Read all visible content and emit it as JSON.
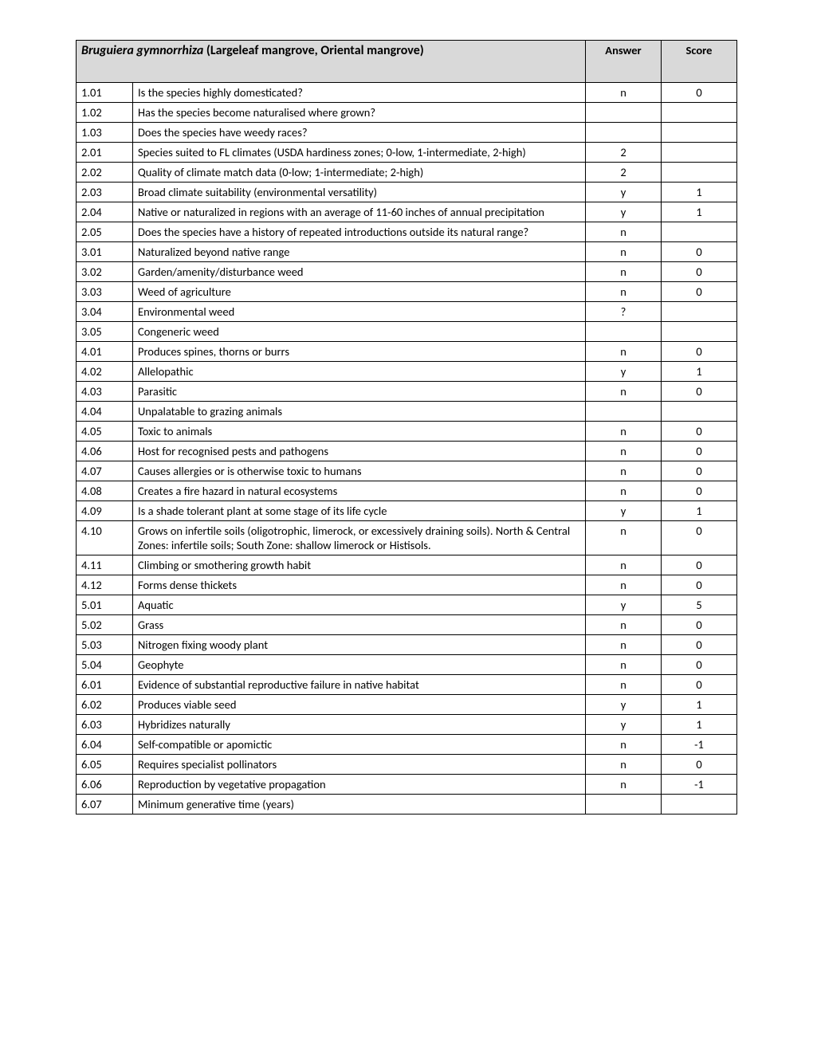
{
  "header": {
    "speciesScientific": "Bruguiera gymnorrhiza",
    "speciesCommon": "  (Largeleaf mangrove, Oriental mangrove)",
    "answerLabel": "Answer",
    "scoreLabel": "Score"
  },
  "rows": [
    {
      "num": "1.01",
      "q": "Is the species highly domesticated?",
      "ans": "n",
      "score": "0"
    },
    {
      "num": "1.02",
      "q": "Has the species become naturalised where grown?",
      "ans": "",
      "score": ""
    },
    {
      "num": "1.03",
      "q": "Does the species have weedy races?",
      "ans": "",
      "score": ""
    },
    {
      "num": "2.01",
      "q": "Species suited to FL climates (USDA hardiness zones; 0-low, 1-intermediate, 2-high)",
      "ans": "2",
      "score": ""
    },
    {
      "num": "2.02",
      "q": "Quality of climate match data (0-low; 1-intermediate; 2-high)",
      "ans": "2",
      "score": ""
    },
    {
      "num": "2.03",
      "q": "Broad climate suitability (environmental versatility)",
      "ans": "y",
      "score": "1"
    },
    {
      "num": "2.04",
      "q": "Native or naturalized in regions with an average of 11-60 inches of annual precipitation",
      "ans": "y",
      "score": "1"
    },
    {
      "num": "2.05",
      "q": "Does the species have a history of repeated introductions outside its natural range?",
      "ans": "n",
      "score": ""
    },
    {
      "num": "3.01",
      "q": "Naturalized beyond native range",
      "ans": "n",
      "score": "0"
    },
    {
      "num": "3.02",
      "q": "Garden/amenity/disturbance weed",
      "ans": "n",
      "score": "0"
    },
    {
      "num": "3.03",
      "q": "Weed of agriculture",
      "ans": "n",
      "score": "0"
    },
    {
      "num": "3.04",
      "q": "Environmental weed",
      "ans": "?",
      "score": ""
    },
    {
      "num": "3.05",
      "q": "Congeneric weed",
      "ans": "",
      "score": ""
    },
    {
      "num": "4.01",
      "q": "Produces spines, thorns or burrs",
      "ans": "n",
      "score": "0"
    },
    {
      "num": "4.02",
      "q": "Allelopathic",
      "ans": "y",
      "score": "1"
    },
    {
      "num": "4.03",
      "q": "Parasitic",
      "ans": "n",
      "score": "0"
    },
    {
      "num": "4.04",
      "q": "Unpalatable to grazing animals",
      "ans": "",
      "score": ""
    },
    {
      "num": "4.05",
      "q": "Toxic to animals",
      "ans": "n",
      "score": "0"
    },
    {
      "num": "4.06",
      "q": "Host for recognised pests and pathogens",
      "ans": "n",
      "score": "0"
    },
    {
      "num": "4.07",
      "q": "Causes allergies or is otherwise toxic to humans",
      "ans": "n",
      "score": "0"
    },
    {
      "num": "4.08",
      "q": "Creates a fire hazard in natural ecosystems",
      "ans": "n",
      "score": "0"
    },
    {
      "num": "4.09",
      "q": "Is a shade tolerant plant at some stage of its life cycle",
      "ans": "y",
      "score": "1"
    },
    {
      "num": "4.10",
      "q": "Grows on infertile soils (oligotrophic, limerock, or excessively draining soils). North & Central Zones: infertile soils; South Zone: shallow limerock or Histisols.",
      "ans": "n",
      "score": "0"
    },
    {
      "num": "4.11",
      "q": "Climbing or smothering growth habit",
      "ans": "n",
      "score": "0"
    },
    {
      "num": "4.12",
      "q": "Forms dense thickets",
      "ans": "n",
      "score": "0"
    },
    {
      "num": "5.01",
      "q": "Aquatic",
      "ans": "y",
      "score": "5"
    },
    {
      "num": "5.02",
      "q": "Grass",
      "ans": "n",
      "score": "0"
    },
    {
      "num": "5.03",
      "q": "Nitrogen fixing woody plant",
      "ans": "n",
      "score": "0"
    },
    {
      "num": "5.04",
      "q": "Geophyte",
      "ans": "n",
      "score": "0"
    },
    {
      "num": "6.01",
      "q": "Evidence of substantial reproductive failure in native habitat",
      "ans": "n",
      "score": "0"
    },
    {
      "num": "6.02",
      "q": "Produces viable seed",
      "ans": "y",
      "score": "1"
    },
    {
      "num": "6.03",
      "q": "Hybridizes naturally",
      "ans": "y",
      "score": "1"
    },
    {
      "num": "6.04",
      "q": "Self-compatible or apomictic",
      "ans": "n",
      "score": "-1"
    },
    {
      "num": "6.05",
      "q": "Requires specialist pollinators",
      "ans": "n",
      "score": "0"
    },
    {
      "num": "6.06",
      "q": "Reproduction by vegetative propagation",
      "ans": "n",
      "score": "-1"
    },
    {
      "num": "6.07",
      "q": "Minimum generative time (years)",
      "ans": "",
      "score": ""
    }
  ],
  "style": {
    "headerBg": "#d9d9d9",
    "borderColor": "#000000",
    "fontFamily": "Calibri, Arial, sans-serif",
    "bodyFontSize": 14.5,
    "headerFontSize": 16
  }
}
